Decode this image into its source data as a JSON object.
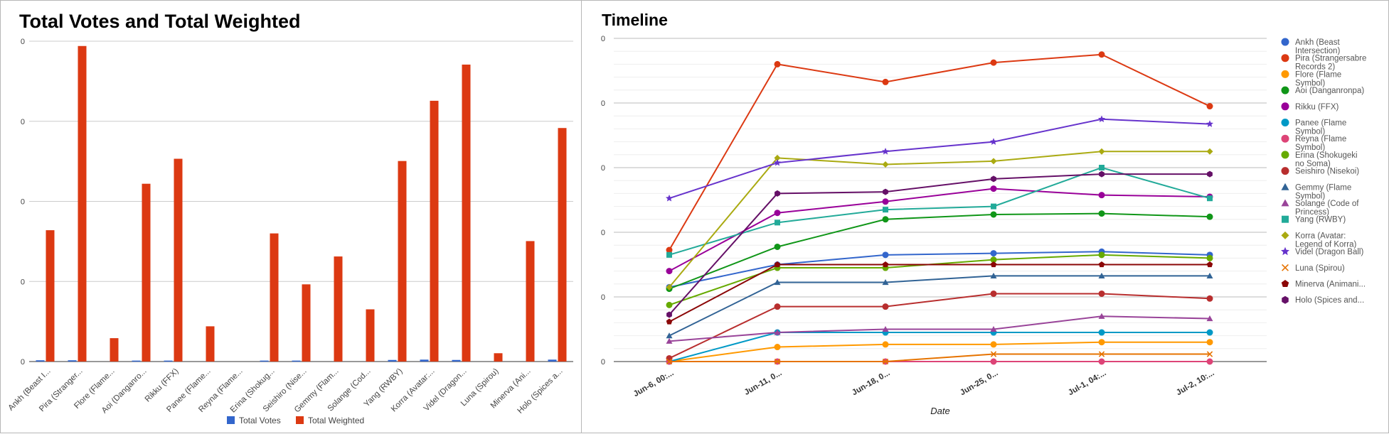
{
  "chart_data": [
    {
      "type": "bar",
      "title": "Total Votes and Total Weighted",
      "categories": [
        "Ankh (Beast I...",
        "Pira (Stranger...",
        "Flore (Flame...",
        "Aoi (Danganro...",
        "Rikku (FFX)",
        "Panee (Flame...",
        "Reyna (Flame...",
        "Erina (Shokug...",
        "Seishiro (Nise...",
        "Gemmy (Flam...",
        "Solange (Cod...",
        "Yang (RWBY)",
        "Korra (Avatar:...",
        "Videl (Dragon...",
        "Luna (Spirou)",
        "Minerva (Ani...",
        "Holo (Spices a..."
      ],
      "series": [
        {
          "name": "Total Votes",
          "color": "#3366cc",
          "values": [
            0.4,
            0.4,
            0,
            0.3,
            0.3,
            0,
            0,
            0.3,
            0.3,
            0,
            0,
            0.5,
            0.6,
            0.5,
            0,
            0,
            0.6
          ]
        },
        {
          "name": "Total Weighted",
          "color": "#dc3912",
          "values": [
            41,
            98.5,
            7.3,
            55.5,
            63.3,
            11,
            0,
            40,
            24.1,
            32.8,
            16.3,
            62.6,
            81.4,
            92.7,
            2.6,
            37.6,
            72.9
          ]
        }
      ],
      "yticks": [
        "0",
        "0",
        "0",
        "0",
        "0"
      ],
      "ylim": [
        0,
        100
      ],
      "legend_position": "bottom",
      "grid": true
    },
    {
      "type": "line",
      "title": "Timeline",
      "xlabel": "Date",
      "x": [
        "Jun-6, 00:...",
        "Jun-11, 0...",
        "Jun-18, 0...",
        "Jun-25, 0...",
        "Jul-1, 04:...",
        "Jul-2, 10:..."
      ],
      "yticks": [
        "0",
        "0",
        "0",
        "0",
        "0",
        "0"
      ],
      "ylim": [
        0,
        100
      ],
      "legend_position": "right",
      "grid": true,
      "series": [
        {
          "name": "Ankh (Beast Intersection)",
          "color": "#3366cc",
          "marker": "circle",
          "values": [
            23,
            30,
            33,
            33.5,
            34,
            33
          ]
        },
        {
          "name": "Pira (Strangersabre Records 2)",
          "color": "#dc3912",
          "marker": "circle",
          "values": [
            34.5,
            92,
            86.5,
            92.5,
            95,
            79
          ]
        },
        {
          "name": "Flore (Flame Symbol)",
          "color": "#ff9900",
          "marker": "circle",
          "values": [
            0,
            4.5,
            5.3,
            5.3,
            6,
            6
          ]
        },
        {
          "name": "Aoi (Danganronpa)",
          "color": "#109618",
          "marker": "circle",
          "values": [
            22.5,
            35.5,
            44,
            45.5,
            45.8,
            44.8
          ]
        },
        {
          "name": "Rikku (FFX)",
          "color": "#990099",
          "marker": "circle",
          "values": [
            28,
            46,
            49.5,
            53.5,
            51.5,
            51
          ]
        },
        {
          "name": "Panee (Flame Symbol)",
          "color": "#0099c6",
          "marker": "circle",
          "values": [
            0,
            9,
            9,
            9,
            9,
            9
          ]
        },
        {
          "name": "Reyna (Flame Symbol)",
          "color": "#dd4477",
          "marker": "circle",
          "values": [
            0,
            0,
            0,
            0,
            0,
            0
          ]
        },
        {
          "name": "Erina (Shokugeki no Soma)",
          "color": "#66aa00",
          "marker": "circle",
          "values": [
            17.5,
            29,
            29,
            31.5,
            33,
            32
          ]
        },
        {
          "name": "Seishiro (Nisekoi)",
          "color": "#b82e2e",
          "marker": "circle",
          "values": [
            1,
            17,
            17,
            21,
            21,
            19.5
          ]
        },
        {
          "name": "Gemmy (Flame Symbol)",
          "color": "#316395",
          "marker": "triangle",
          "values": [
            8,
            24.5,
            24.5,
            26.5,
            26.5,
            26.5
          ]
        },
        {
          "name": "Solange (Code of Princess)",
          "color": "#994499",
          "marker": "triangle",
          "values": [
            6.3,
            9,
            10,
            10,
            14,
            13.3
          ]
        },
        {
          "name": "Yang (RWBY)",
          "color": "#22aa99",
          "marker": "square",
          "values": [
            33,
            43,
            47,
            48,
            60,
            50.5
          ]
        },
        {
          "name": "Korra (Avatar: Legend of Korra)",
          "color": "#aaaa11",
          "marker": "diamond",
          "values": [
            23,
            63,
            61,
            62,
            65,
            65
          ]
        },
        {
          "name": "Videl (Dragon Ball)",
          "color": "#6633cc",
          "marker": "star",
          "values": [
            50.5,
            61.5,
            65,
            68,
            75,
            73.5
          ]
        },
        {
          "name": "Luna (Spirou)",
          "color": "#e67300",
          "marker": "x",
          "values": [
            0,
            0,
            0,
            2.3,
            2.3,
            2.3
          ]
        },
        {
          "name": "Minerva (Animaniacs)",
          "color": "#8b0707",
          "marker": "pentagon",
          "values": [
            12.3,
            30,
            30,
            30,
            30,
            30
          ]
        },
        {
          "name": "Holo (Spices and Wolves)",
          "color": "#651067",
          "marker": "hexagon",
          "values": [
            14.5,
            52,
            52.5,
            56.5,
            58,
            58
          ]
        }
      ],
      "legend_labels": [
        [
          "Ankh (Beast",
          "Intersection)"
        ],
        [
          "Pira (Strangersabre",
          "Records 2)"
        ],
        [
          " Flore (Flame",
          "Symbol)"
        ],
        [
          "Aoi (Danganronpa)"
        ],
        [
          "Rikku (FFX)"
        ],
        [
          "Panee (Flame",
          "Symbol)"
        ],
        [
          "Reyna (Flame",
          "Symbol)"
        ],
        [
          "Erina (Shokugeki",
          "no Soma)"
        ],
        [
          "Seishiro (Nisekoi)"
        ],
        [
          "Gemmy (Flame",
          "Symbol)"
        ],
        [
          "Solange (Code of",
          "Princess)"
        ],
        [
          "Yang (RWBY)"
        ],
        [
          "Korra (Avatar:",
          "Legend of Korra)"
        ],
        [
          "Videl (Dragon Ball)"
        ],
        [
          "Luna (Spirou)"
        ],
        [
          "Minerva (Animani..."
        ],
        [
          "Holo (Spices and..."
        ]
      ]
    }
  ]
}
